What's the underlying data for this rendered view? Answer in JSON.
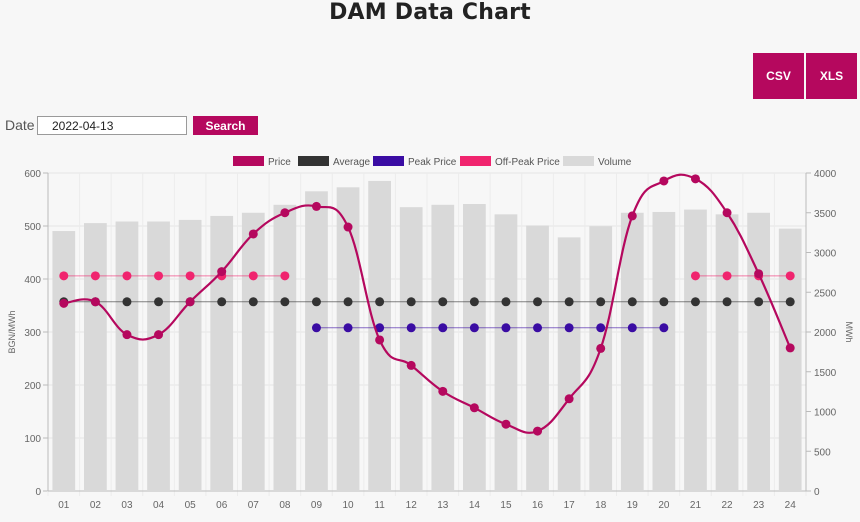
{
  "title": "DAM Data Chart",
  "buttons": {
    "csv": "CSV",
    "xls": "XLS",
    "search": "Search"
  },
  "date": {
    "label": "Date",
    "value": "2022-04-13"
  },
  "colors": {
    "price": "#b5085e",
    "average": "#333333",
    "peak": "#3a0ca3",
    "offpeak": "#f0246e",
    "volume": "#d9d9d9"
  },
  "chart_data": {
    "type": "bar",
    "categories": [
      "01",
      "02",
      "03",
      "04",
      "05",
      "06",
      "07",
      "08",
      "09",
      "10",
      "11",
      "12",
      "13",
      "14",
      "15",
      "16",
      "17",
      "18",
      "19",
      "20",
      "21",
      "22",
      "23",
      "24"
    ],
    "ylabel": "BGN/MWh",
    "y2label": "MWh",
    "ylim": [
      0,
      600
    ],
    "y2lim": [
      0,
      4000
    ],
    "yticks": [
      0,
      100,
      200,
      300,
      400,
      500,
      600
    ],
    "y2ticks": [
      0,
      500,
      1000,
      1500,
      2000,
      2500,
      3000,
      3500,
      4000
    ],
    "grid": true,
    "legend_position": "top",
    "series": [
      {
        "name": "Price",
        "type": "line",
        "axis": "left",
        "values": [
          354,
          357,
          295,
          295,
          357,
          414,
          485,
          525,
          537,
          498,
          285,
          237,
          188,
          157,
          126,
          113,
          174,
          269,
          519,
          585,
          589,
          525,
          410,
          270
        ]
      },
      {
        "name": "Average",
        "type": "line",
        "axis": "left",
        "values": [
          357,
          357,
          357,
          357,
          357,
          357,
          357,
          357,
          357,
          357,
          357,
          357,
          357,
          357,
          357,
          357,
          357,
          357,
          357,
          357,
          357,
          357,
          357,
          357
        ]
      },
      {
        "name": "Peak Price",
        "type": "line",
        "axis": "left",
        "values": [
          null,
          null,
          null,
          null,
          null,
          null,
          null,
          null,
          308,
          308,
          308,
          308,
          308,
          308,
          308,
          308,
          308,
          308,
          308,
          308,
          null,
          null,
          null,
          null
        ]
      },
      {
        "name": "Off-Peak Price",
        "type": "line",
        "axis": "left",
        "values": [
          406,
          406,
          406,
          406,
          406,
          406,
          406,
          406,
          null,
          null,
          null,
          null,
          null,
          null,
          null,
          null,
          null,
          null,
          null,
          null,
          406,
          406,
          406,
          406
        ]
      },
      {
        "name": "Volume",
        "type": "bar",
        "axis": "right",
        "values": [
          3270,
          3370,
          3390,
          3390,
          3410,
          3460,
          3500,
          3600,
          3770,
          3820,
          3900,
          3570,
          3600,
          3610,
          3480,
          3340,
          3190,
          3330,
          3500,
          3510,
          3540,
          3480,
          3500,
          3300
        ]
      }
    ]
  }
}
